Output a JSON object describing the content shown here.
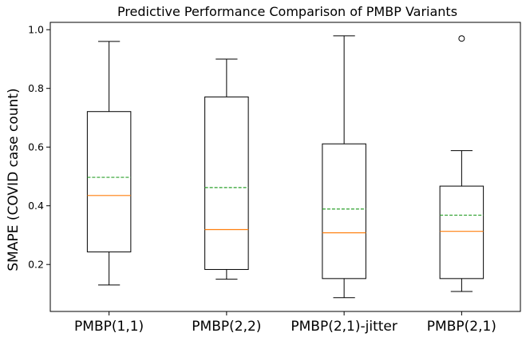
{
  "chart_data": {
    "type": "box",
    "title": "Predictive Performance Comparison of PMBP Variants",
    "xlabel": "",
    "ylabel": "SMAPE (COVID case count)",
    "ylim": [
      0.04,
      1.025
    ],
    "yticks": [
      "0.2",
      "0.4",
      "0.6",
      "0.8",
      "1.0"
    ],
    "grid": false,
    "legend": "none",
    "colors": {
      "median": "#ff7f0e",
      "mean": "#2ca02c",
      "box": "#000000"
    },
    "categories": [
      "PMBP(1,1)",
      "PMBP(2,2)",
      "PMBP(2,1)-jitter",
      "PMBP(2,1)"
    ],
    "boxes": [
      {
        "whisker_low": 0.13,
        "q1": 0.243,
        "median": 0.435,
        "mean": 0.497,
        "q3": 0.721,
        "whisker_high": 0.96,
        "outliers": []
      },
      {
        "whisker_low": 0.15,
        "q1": 0.183,
        "median": 0.319,
        "mean": 0.462,
        "q3": 0.771,
        "whisker_high": 0.9,
        "outliers": []
      },
      {
        "whisker_low": 0.087,
        "q1": 0.152,
        "median": 0.308,
        "mean": 0.389,
        "q3": 0.611,
        "whisker_high": 0.979,
        "outliers": []
      },
      {
        "whisker_low": 0.108,
        "q1": 0.152,
        "median": 0.313,
        "mean": 0.368,
        "q3": 0.467,
        "whisker_high": 0.588,
        "outliers": [
          0.97
        ]
      }
    ]
  }
}
